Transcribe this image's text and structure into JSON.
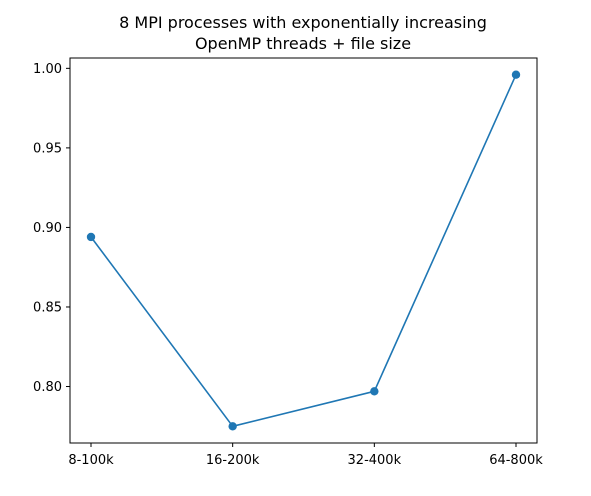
{
  "chart_data": {
    "type": "line",
    "title_lines": [
      "8 MPI processes with exponentially increasing",
      "OpenMP threads + file size"
    ],
    "xlabel": "",
    "ylabel": "",
    "categories": [
      "8-100k",
      "16-200k",
      "32-400k",
      "64-800k"
    ],
    "series": [
      {
        "values": [
          0.894,
          0.775,
          0.797,
          0.996
        ],
        "color": "#1f77b4",
        "marker": "circle"
      }
    ],
    "yticks": [
      0.8,
      0.85,
      0.9,
      0.95,
      1.0
    ],
    "ytick_labels": [
      "0.80",
      "0.85",
      "0.90",
      "0.95",
      "1.00"
    ],
    "ylim": [
      0.7645,
      1.0065
    ],
    "grid": false,
    "legend": "none"
  }
}
